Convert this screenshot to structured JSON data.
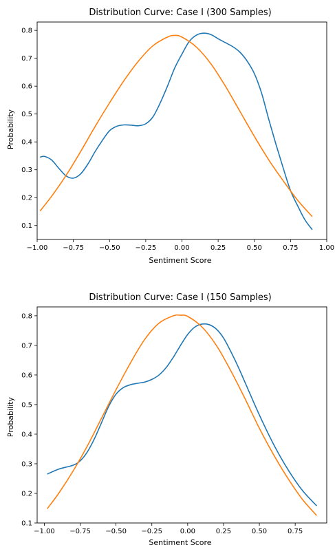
{
  "chart_data": [
    {
      "type": "line",
      "title": "Distribution Curve: Case I (300 Samples)",
      "xlabel": "Sentiment Score",
      "ylabel": "Probability",
      "xlim": [
        -1.0,
        1.0
      ],
      "ylim": [
        0.05,
        0.83
      ],
      "xticks": [
        -1.0,
        -0.75,
        -0.5,
        -0.25,
        0.0,
        0.25,
        0.5,
        0.75,
        1.0
      ],
      "xtick_labels": [
        "−1.00",
        "−0.75",
        "−0.50",
        "−0.25",
        "0.00",
        "0.25",
        "0.50",
        "0.75",
        "1.00"
      ],
      "yticks": [
        0.1,
        0.2,
        0.3,
        0.4,
        0.5,
        0.6,
        0.7,
        0.8
      ],
      "ytick_labels": [
        "0.1",
        "0.2",
        "0.3",
        "0.4",
        "0.5",
        "0.6",
        "0.7",
        "0.8"
      ],
      "grid": false,
      "legend": false,
      "series": [
        {
          "color": "#1f77b4",
          "x": [
            -0.98,
            -0.95,
            -0.9,
            -0.85,
            -0.8,
            -0.75,
            -0.7,
            -0.65,
            -0.6,
            -0.55,
            -0.5,
            -0.45,
            -0.4,
            -0.35,
            -0.3,
            -0.25,
            -0.2,
            -0.15,
            -0.1,
            -0.05,
            0.0,
            0.05,
            0.1,
            0.15,
            0.2,
            0.25,
            0.3,
            0.35,
            0.4,
            0.45,
            0.5,
            0.55,
            0.6,
            0.65,
            0.7,
            0.75,
            0.8,
            0.85,
            0.9
          ],
          "y": [
            0.345,
            0.348,
            0.335,
            0.305,
            0.278,
            0.27,
            0.285,
            0.32,
            0.365,
            0.405,
            0.44,
            0.456,
            0.461,
            0.46,
            0.458,
            0.465,
            0.49,
            0.54,
            0.6,
            0.665,
            0.715,
            0.76,
            0.783,
            0.79,
            0.785,
            0.77,
            0.756,
            0.742,
            0.722,
            0.69,
            0.645,
            0.575,
            0.48,
            0.39,
            0.305,
            0.225,
            0.17,
            0.12,
            0.085
          ]
        },
        {
          "color": "#ff7f0e",
          "x": [
            -0.98,
            -0.9,
            -0.8,
            -0.7,
            -0.6,
            -0.5,
            -0.4,
            -0.3,
            -0.2,
            -0.1,
            -0.05,
            0.0,
            0.1,
            0.2,
            0.3,
            0.4,
            0.5,
            0.6,
            0.7,
            0.8,
            0.9
          ],
          "y": [
            0.152,
            0.205,
            0.28,
            0.365,
            0.455,
            0.54,
            0.62,
            0.69,
            0.745,
            0.776,
            0.782,
            0.776,
            0.74,
            0.68,
            0.6,
            0.51,
            0.42,
            0.335,
            0.26,
            0.19,
            0.132
          ]
        }
      ]
    },
    {
      "type": "line",
      "title": "Distribution Curve: Case I (150 Samples)",
      "xlabel": "Sentiment Score",
      "ylabel": "Probability",
      "xlim": [
        -1.05,
        0.97
      ],
      "ylim": [
        0.1,
        0.83
      ],
      "xticks": [
        -1.0,
        -0.75,
        -0.5,
        -0.25,
        0.0,
        0.25,
        0.5,
        0.75
      ],
      "xtick_labels": [
        "−1.00",
        "−0.75",
        "−0.50",
        "−0.25",
        "0.00",
        "0.25",
        "0.50",
        "0.75"
      ],
      "yticks": [
        0.1,
        0.2,
        0.3,
        0.4,
        0.5,
        0.6,
        0.7,
        0.8
      ],
      "ytick_labels": [
        "0.1",
        "0.2",
        "0.3",
        "0.4",
        "0.5",
        "0.6",
        "0.7",
        "0.8"
      ],
      "grid": false,
      "legend": false,
      "series": [
        {
          "color": "#1f77b4",
          "x": [
            -0.98,
            -0.9,
            -0.8,
            -0.75,
            -0.7,
            -0.65,
            -0.6,
            -0.55,
            -0.5,
            -0.45,
            -0.4,
            -0.35,
            -0.3,
            -0.25,
            -0.2,
            -0.15,
            -0.1,
            -0.05,
            0.0,
            0.05,
            0.1,
            0.15,
            0.2,
            0.25,
            0.3,
            0.35,
            0.4,
            0.5,
            0.6,
            0.7,
            0.8,
            0.9
          ],
          "y": [
            0.265,
            0.282,
            0.295,
            0.31,
            0.34,
            0.385,
            0.44,
            0.495,
            0.535,
            0.557,
            0.567,
            0.572,
            0.576,
            0.585,
            0.6,
            0.625,
            0.66,
            0.7,
            0.737,
            0.762,
            0.772,
            0.77,
            0.755,
            0.725,
            0.68,
            0.63,
            0.575,
            0.465,
            0.365,
            0.28,
            0.21,
            0.158
          ]
        },
        {
          "color": "#ff7f0e",
          "x": [
            -0.98,
            -0.9,
            -0.8,
            -0.7,
            -0.6,
            -0.5,
            -0.4,
            -0.3,
            -0.2,
            -0.1,
            -0.05,
            0.0,
            0.1,
            0.2,
            0.3,
            0.4,
            0.5,
            0.6,
            0.7,
            0.8,
            0.9
          ],
          "y": [
            0.148,
            0.2,
            0.275,
            0.36,
            0.455,
            0.55,
            0.64,
            0.72,
            0.775,
            0.8,
            0.802,
            0.798,
            0.762,
            0.7,
            0.615,
            0.52,
            0.42,
            0.33,
            0.25,
            0.18,
            0.125
          ]
        }
      ]
    }
  ]
}
